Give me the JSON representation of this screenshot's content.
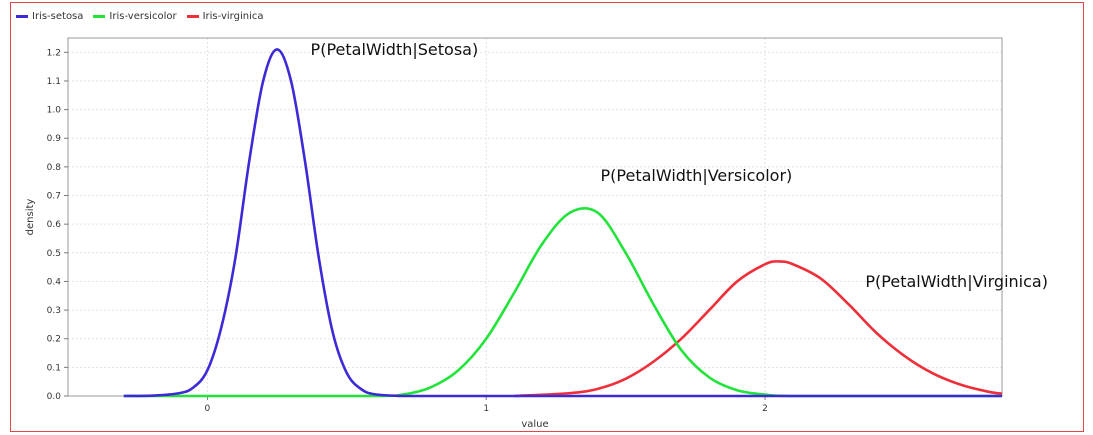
{
  "chart_data": {
    "type": "line",
    "title": "",
    "xlabel": "value",
    "ylabel": "density",
    "xlim": [
      -0.5,
      2.85
    ],
    "ylim": [
      0,
      1.25
    ],
    "x_ticks": [
      0,
      1,
      2
    ],
    "y_ticks": [
      0.0,
      0.1,
      0.2,
      0.3,
      0.4,
      0.5,
      0.6,
      0.7,
      0.8,
      0.9,
      1.0,
      1.1,
      1.2
    ],
    "y_tick_labels": [
      "0.0",
      "0.1",
      "0.2",
      "0.3",
      "0.4",
      "0.5",
      "0.6",
      "0.7",
      "0.8",
      "0.9",
      "1.0",
      "1.1",
      "1.2"
    ],
    "grid": true,
    "legend_position": "top-left",
    "series": [
      {
        "name": "Iris-setosa",
        "color": "#3c2ad6",
        "x": [
          -0.3,
          -0.2,
          -0.1,
          -0.05,
          0.0,
          0.05,
          0.1,
          0.15,
          0.2,
          0.25,
          0.3,
          0.35,
          0.4,
          0.45,
          0.5,
          0.55,
          0.6,
          0.7,
          0.8,
          1.0,
          1.5,
          2.0,
          2.5,
          2.85
        ],
        "y": [
          0.0,
          0.001,
          0.01,
          0.03,
          0.09,
          0.24,
          0.48,
          0.82,
          1.1,
          1.21,
          1.1,
          0.82,
          0.48,
          0.22,
          0.08,
          0.025,
          0.006,
          0.0,
          0.0,
          0.0,
          0.0,
          0.0,
          0.0,
          0.0
        ]
      },
      {
        "name": "Iris-versicolor",
        "color": "#22e33a",
        "x": [
          -0.3,
          0.2,
          0.6,
          0.7,
          0.8,
          0.9,
          1.0,
          1.1,
          1.2,
          1.3,
          1.4,
          1.5,
          1.6,
          1.7,
          1.8,
          1.9,
          2.0,
          2.1,
          2.5,
          2.85
        ],
        "y": [
          0.0,
          0.0,
          0.0,
          0.005,
          0.03,
          0.09,
          0.2,
          0.36,
          0.53,
          0.64,
          0.64,
          0.5,
          0.32,
          0.16,
          0.065,
          0.02,
          0.005,
          0.0,
          0.0,
          0.0
        ],
        "annotation": "P(PetalWidth|Versicolor)"
      },
      {
        "name": "Iris-virginica",
        "color": "#ee2f3a",
        "x": [
          1.1,
          1.3,
          1.4,
          1.5,
          1.6,
          1.7,
          1.8,
          1.9,
          2.0,
          2.05,
          2.1,
          2.2,
          2.3,
          2.4,
          2.5,
          2.6,
          2.7,
          2.8,
          2.85
        ],
        "y": [
          0.0,
          0.01,
          0.025,
          0.06,
          0.12,
          0.2,
          0.3,
          0.4,
          0.46,
          0.47,
          0.46,
          0.41,
          0.32,
          0.22,
          0.14,
          0.08,
          0.04,
          0.015,
          0.008
        ],
        "annotation": "P(PetalWidth|Virginica)"
      }
    ],
    "annotations": [
      {
        "text": "P(PetalWidth|Setosa)",
        "x": 0.37,
        "y": 1.19
      },
      {
        "text": "P(PetalWidth|Versicolor)",
        "x": 1.41,
        "y": 0.75
      },
      {
        "text": "P(PetalWidth|Virginica)",
        "x": 2.36,
        "y": 0.38
      }
    ]
  }
}
